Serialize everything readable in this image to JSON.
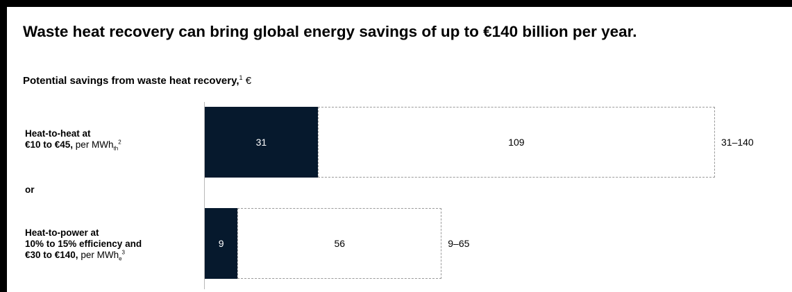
{
  "title": "Waste heat recovery can bring global energy savings of up to €140 billion per year.",
  "subtitle": {
    "bold": "Potential savings from waste heat recovery,",
    "footnote": "1",
    "unit": " €"
  },
  "categories": [
    {
      "line1": "Heat-to-heat at",
      "line2_bold": "€10 to €45,",
      "line2_rest": " per MWh",
      "sub": "th",
      "sup": "2"
    },
    {
      "line1": "Heat-to-power at",
      "line2_bold": "10% to 15% efficiency and",
      "line3_bold": "€30 to €140,",
      "line3_rest": " per MWh",
      "sub": "e",
      "sup": "3"
    }
  ],
  "separator": "or",
  "colors": {
    "solid": "#06192d",
    "dashed_border": "#9a9a9a",
    "axis": "#b8b8b8"
  },
  "chart_data": {
    "type": "bar",
    "orientation": "horizontal",
    "stacked": true,
    "categories": [
      "Heat-to-heat",
      "Heat-to-power"
    ],
    "series": [
      {
        "values": [
          31,
          9
        ],
        "style": "solid"
      },
      {
        "values": [
          109,
          56
        ],
        "style": "dashed-outline"
      }
    ],
    "ranges": [
      "31–140",
      "9–65"
    ],
    "xlim": [
      0,
      140
    ]
  }
}
